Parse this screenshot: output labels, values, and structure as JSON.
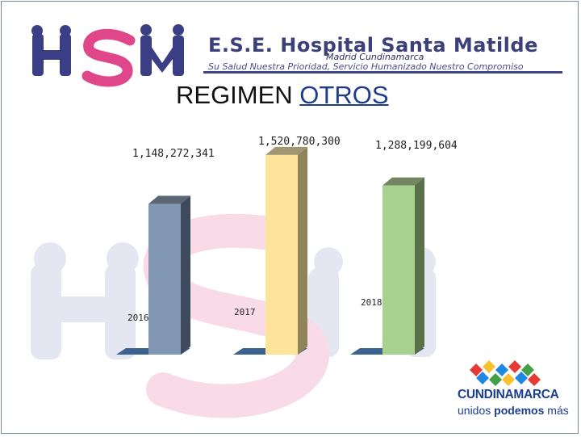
{
  "header": {
    "logo_text": "HSM",
    "org_name": "E.S.E. Hospital Santa Matilde",
    "org_location": "Madrid Cundinamarca",
    "org_motto": "Su Salud Nuestra Prioridad, Servicio Humanizado Nuestro Compromiso"
  },
  "title": {
    "prefix": "REGIMEN ",
    "highlight": "OTROS"
  },
  "chart_data": {
    "type": "bar",
    "categories": [
      "2016",
      "2017",
      "2018"
    ],
    "values": [
      1148272341,
      1520780300,
      1288199604
    ],
    "value_labels": [
      "1,148,272,341",
      "1,520,780,300",
      "1,288,199,604"
    ],
    "ylim": [
      0,
      1600000000
    ],
    "colors": [
      "#8197b4",
      "#fde49a",
      "#a8d08e"
    ],
    "side_colors": [
      "#3e4a5c",
      "#8f8459",
      "#5a7048"
    ],
    "base_color": "#3a6390",
    "grid": false,
    "legend": "none",
    "bar_style": "3d"
  },
  "footer": {
    "brand": "CUNDINAMARCA",
    "slogan_prefix": "unidos ",
    "slogan_bold": "podemos",
    "slogan_suffix": " más"
  }
}
